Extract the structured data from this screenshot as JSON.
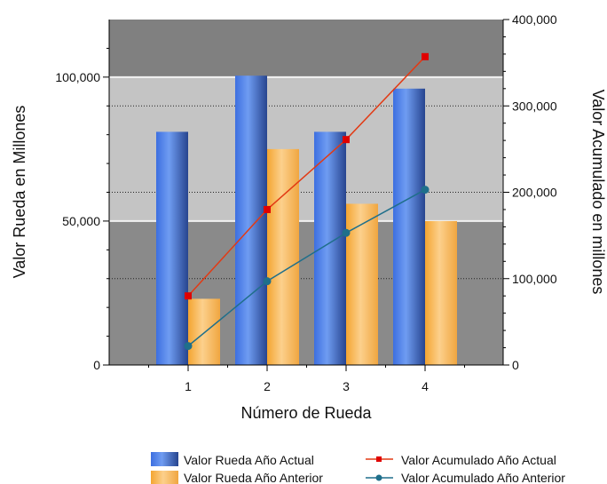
{
  "chart_data": {
    "type": "bar",
    "title": "",
    "categories": [
      "1",
      "2",
      "3",
      "4"
    ],
    "xlabel": "Número de Rueda",
    "ylabel": "Valor Rueda en Millones",
    "y2label": "Valor Acumulado en millones",
    "ylim": [
      0,
      120000
    ],
    "y2lim": [
      0,
      400000
    ],
    "yticks": [
      "0",
      "50,000",
      "100,000"
    ],
    "y2ticks": [
      "0",
      "100,000",
      "200,000",
      "300,000",
      "400,000"
    ],
    "series": [
      {
        "name": "Valor Rueda Año Actual",
        "kind": "bar",
        "axis": "left",
        "color": "#4f7fd6",
        "values": [
          81000,
          100500,
          81000,
          96000
        ]
      },
      {
        "name": "Valor Rueda Año Anterior",
        "kind": "bar",
        "axis": "left",
        "color": "#f5b352",
        "values": [
          23000,
          75000,
          56000,
          50000
        ]
      },
      {
        "name": "Valor Acumulado Año Actual",
        "kind": "line",
        "axis": "right",
        "color": "#e23a14",
        "marker": "square",
        "values": [
          80000,
          180000,
          261000,
          357000
        ]
      },
      {
        "name": "Valor Acumulado Año Anterior",
        "kind": "line",
        "axis": "right",
        "color": "#1f6f8b",
        "marker": "circle",
        "values": [
          22000,
          97000,
          153000,
          203000
        ]
      }
    ],
    "bands": [
      {
        "from": 0,
        "to": 50000,
        "color": "#8a8a8a"
      },
      {
        "from": 50000,
        "to": 100000,
        "color": "#c4c4c4"
      },
      {
        "from": 100000,
        "to": 120000,
        "color": "#808080"
      }
    ],
    "grid": true,
    "legend_position": "bottom-right"
  }
}
